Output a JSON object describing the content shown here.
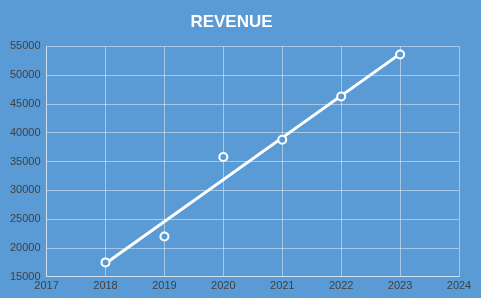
{
  "chart_data": {
    "type": "scatter",
    "title": "REVENUE",
    "x": [
      2018,
      2019,
      2020,
      2021,
      2022,
      2023
    ],
    "series": [
      {
        "values": [
          17500,
          22000,
          35800,
          38800,
          46300,
          53600
        ],
        "color": "#ffffff",
        "marker": "circle"
      },
      {
        "type": "line",
        "x": [
          2018,
          2023
        ],
        "values": [
          17300,
          53700
        ],
        "color": "#ffffff",
        "marker": "none",
        "line_style": "solid"
      }
    ],
    "xlim": [
      2017,
      2024
    ],
    "xticks": [
      2017,
      2018,
      2019,
      2020,
      2021,
      2022,
      2023,
      2024
    ],
    "ylim": [
      15000,
      55000
    ],
    "yticks": [
      15000,
      20000,
      25000,
      30000,
      35000,
      40000,
      45000,
      50000,
      55000
    ],
    "grid": true
  }
}
